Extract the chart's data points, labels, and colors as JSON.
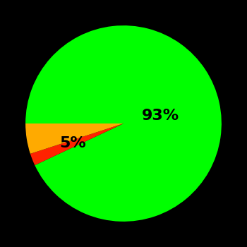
{
  "slices": [
    93,
    2,
    5
  ],
  "colors": [
    "#00ff00",
    "#ff2200",
    "#ffaa00"
  ],
  "labels": [
    "93%",
    "",
    "5%"
  ],
  "background_color": "#000000",
  "startangle": 180,
  "figsize": [
    3.5,
    3.5
  ],
  "dpi": 100,
  "label_fontsize": 16,
  "label_fontweight": "bold",
  "label_positions": [
    [
      0.38,
      0.08
    ],
    [
      null,
      null
    ],
    [
      -0.52,
      -0.2
    ]
  ]
}
